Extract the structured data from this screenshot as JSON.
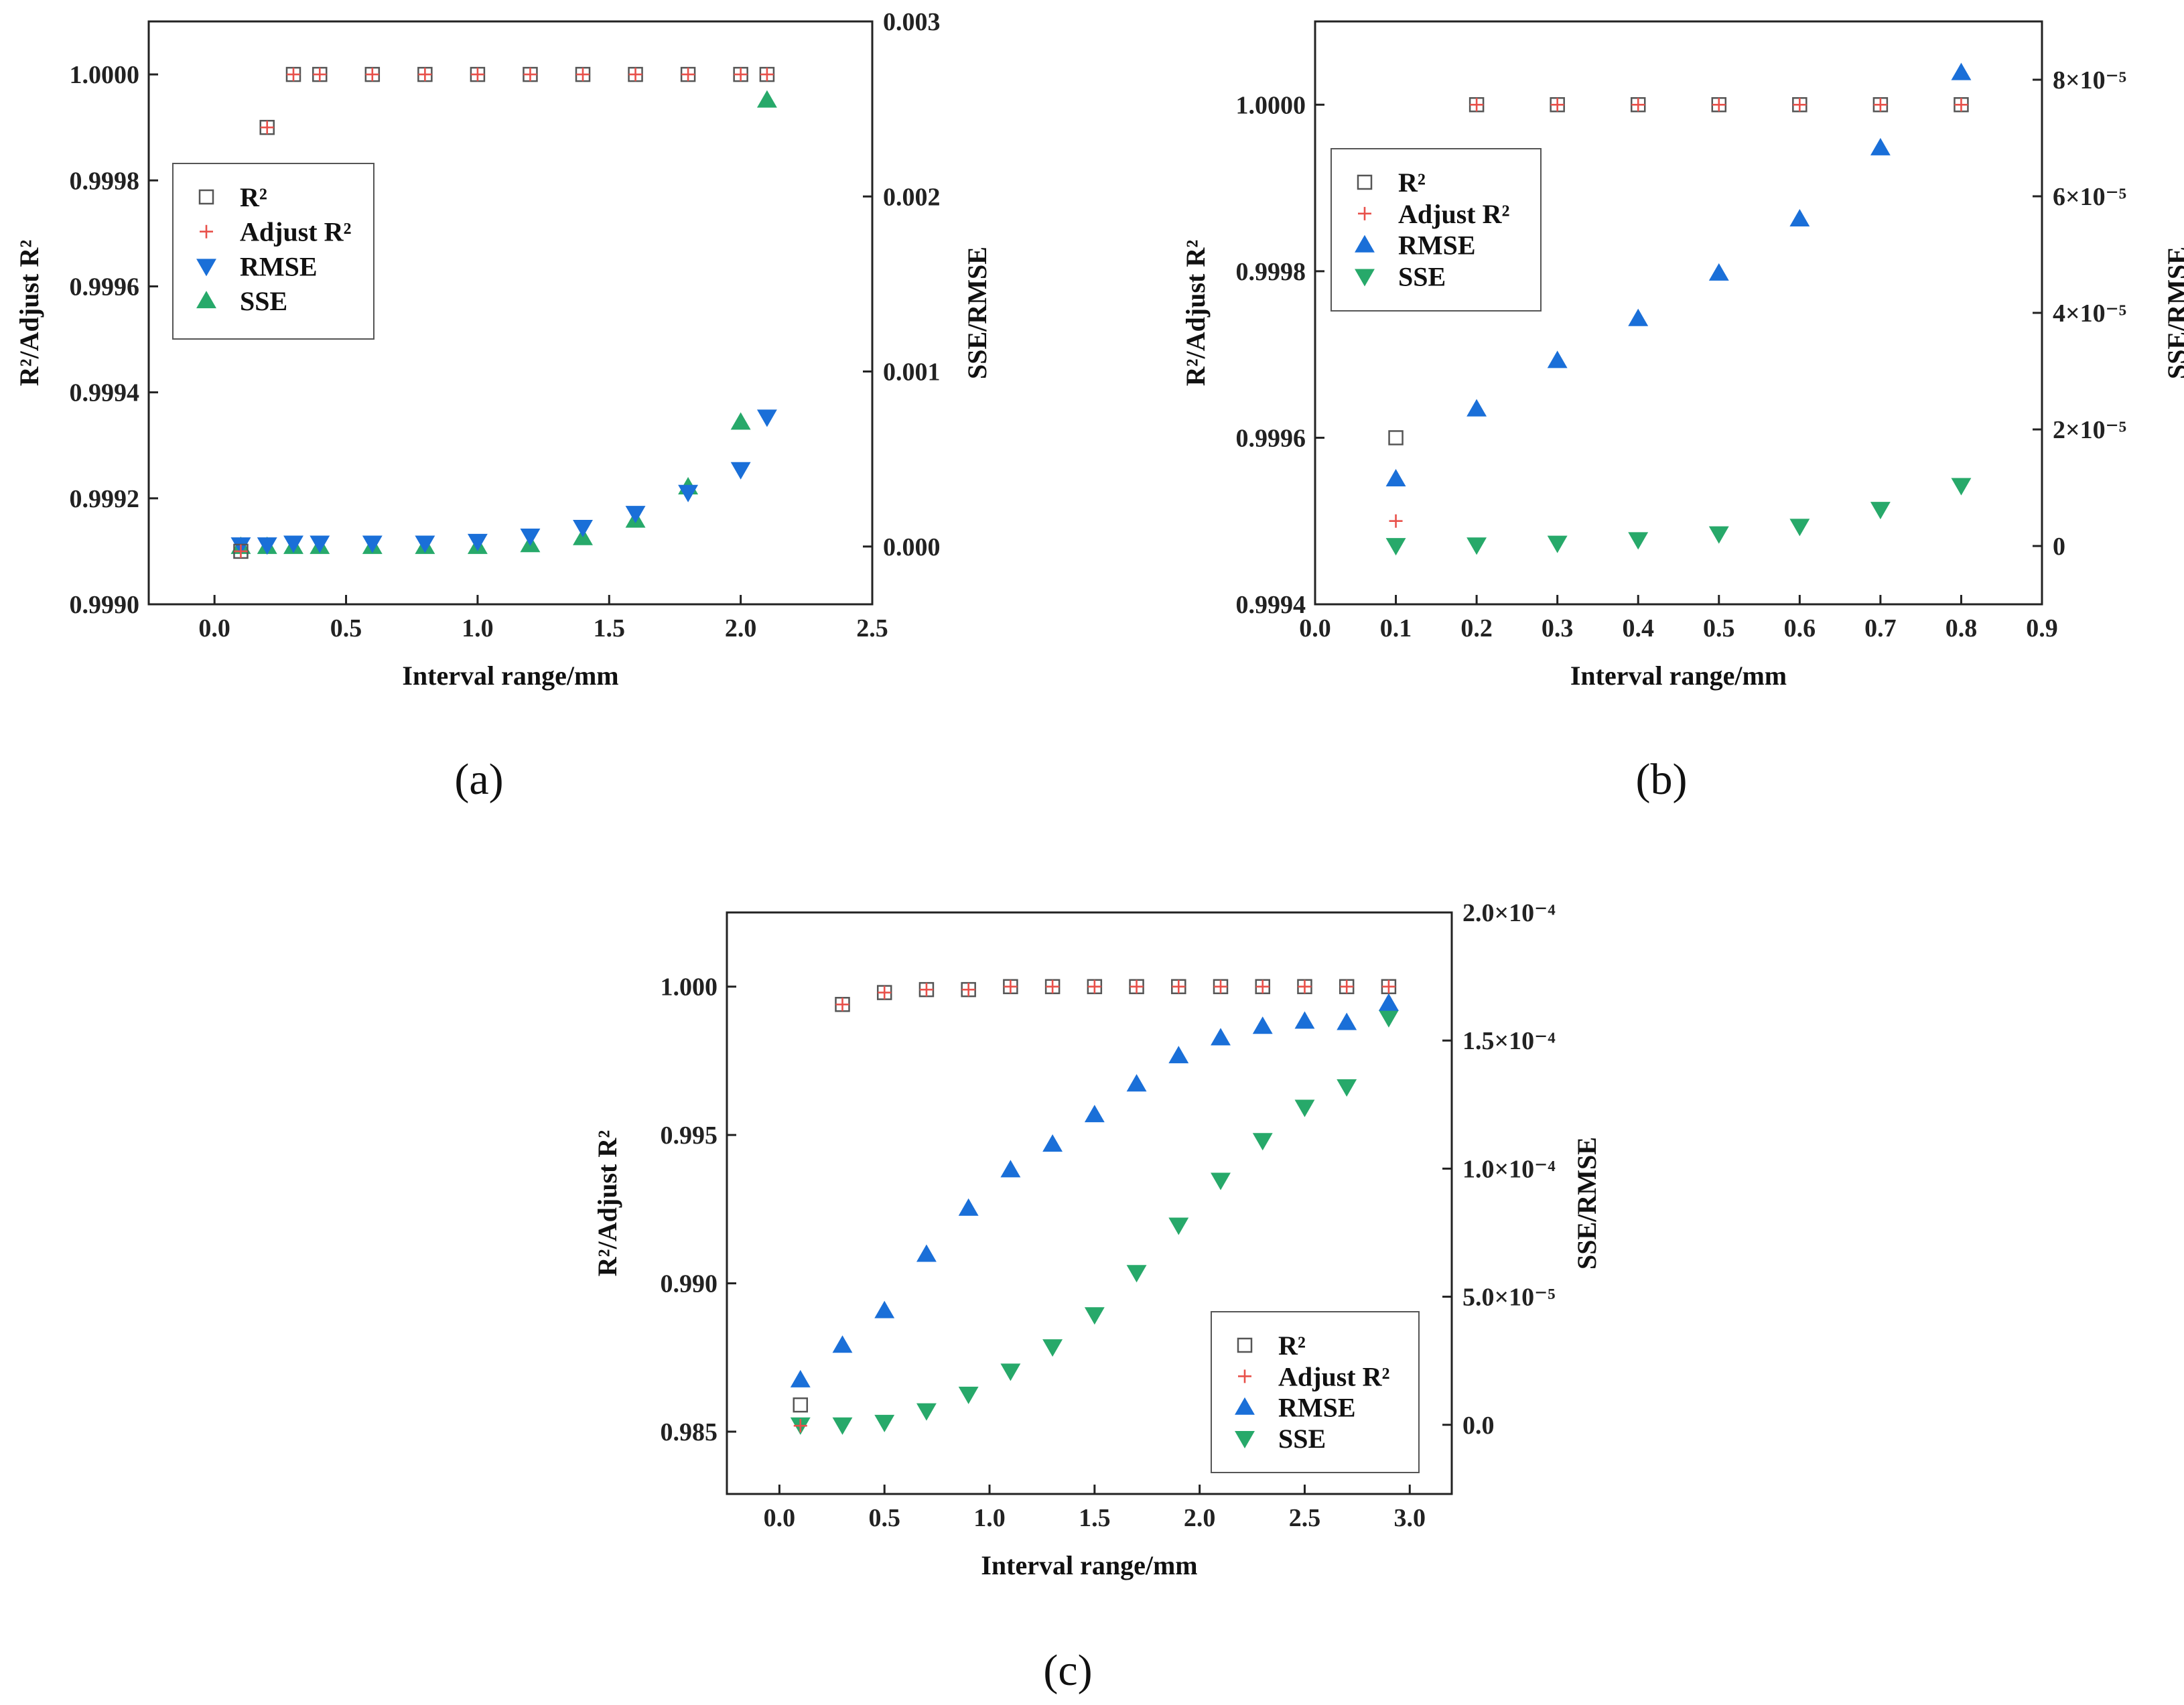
{
  "colors": {
    "r2": "#555555",
    "adj": "#e8504a",
    "rmse": "#1a6fd8",
    "sse": "#27a96a",
    "axis": "#222222"
  },
  "panels": [
    {
      "caption_letter": "a",
      "legend_position": "top-left",
      "legend_order": [
        "r2",
        "adj",
        "rmse",
        "sse"
      ],
      "rmse_marker": "triangle-down",
      "sse_marker": "triangle-up",
      "right_ticks": [
        {
          "v": 0,
          "label": "0.000"
        },
        {
          "v": 0.001,
          "label": "0.001"
        },
        {
          "v": 0.002,
          "label": "0.002"
        },
        {
          "v": 0.003,
          "label": "0.003"
        }
      ]
    },
    {
      "caption_letter": "b",
      "legend_position": "top-left",
      "legend_order": [
        "r2",
        "adj",
        "rmse",
        "sse"
      ],
      "rmse_marker": "triangle-up",
      "sse_marker": "triangle-down",
      "right_ticks": [
        {
          "v": 0,
          "label": "0"
        },
        {
          "v": 2e-05,
          "label": "2×10⁻⁵"
        },
        {
          "v": 4e-05,
          "label": "4×10⁻⁵"
        },
        {
          "v": 6e-05,
          "label": "6×10⁻⁵"
        },
        {
          "v": 8e-05,
          "label": "8×10⁻⁵"
        }
      ]
    },
    {
      "caption_letter": "c",
      "legend_position": "bottom-right",
      "legend_order": [
        "r2",
        "adj",
        "rmse",
        "sse"
      ],
      "rmse_marker": "triangle-up",
      "sse_marker": "triangle-down",
      "right_ticks": [
        {
          "v": 0,
          "label": "0.0"
        },
        {
          "v": 5e-05,
          "label": "5.0×10⁻⁵"
        },
        {
          "v": 0.0001,
          "label": "1.0×10⁻⁴"
        },
        {
          "v": 0.00015,
          "label": "1.5×10⁻⁴"
        },
        {
          "v": 0.0002,
          "label": "2.0×10⁻⁴"
        }
      ]
    }
  ],
  "chart_data": [
    {
      "type": "scatter",
      "xlabel": "Interval range/mm",
      "ylabel": "R²/Adjust R²",
      "y2label": "SSE/RMSE",
      "xlim": [
        -0.25,
        2.5
      ],
      "ylim": [
        0.999,
        1.0001
      ],
      "y2lim": [
        -0.00033,
        0.003
      ],
      "x_ticks": [
        0,
        0.5,
        1,
        1.5,
        2,
        2.5
      ],
      "x_tick_labels": [
        "0.0",
        "0.5",
        "1.0",
        "1.5",
        "2.0",
        "2.5"
      ],
      "y_ticks": [
        0.999,
        0.9992,
        0.9994,
        0.9996,
        0.9998,
        1.0
      ],
      "y_tick_labels": [
        "0.9990",
        "0.9992",
        "0.9994",
        "0.9996",
        "0.9998",
        "1.0000"
      ],
      "y2_tick_labels": [
        "0.000",
        "0.001",
        "0.002",
        "0.003"
      ],
      "x": [
        0.1,
        0.2,
        0.3,
        0.4,
        0.6,
        0.8,
        1.0,
        1.2,
        1.4,
        1.6,
        1.8,
        2.0,
        2.1
      ],
      "series": [
        {
          "key": "r2",
          "name": "R²",
          "axis": "left",
          "values": [
            0.9991,
            0.9999,
            1.0,
            1.0,
            1.0,
            1.0,
            1.0,
            1.0,
            1.0,
            1.0,
            1.0,
            1.0,
            1.0
          ]
        },
        {
          "key": "adj",
          "name": "Adjust R²",
          "axis": "left",
          "values": [
            0.9991,
            0.9999,
            1.0,
            1.0,
            1.0,
            1.0,
            1.0,
            1.0,
            1.0,
            1.0,
            1.0,
            1.0,
            1.0
          ]
        },
        {
          "key": "rmse",
          "name": "RMSE",
          "axis": "right",
          "values": [
            1e-05,
            1e-05,
            2e-05,
            2e-05,
            2e-05,
            2e-05,
            3e-05,
            6e-05,
            0.00011,
            0.00019,
            0.00031,
            0.00044,
            0.00074
          ]
        },
        {
          "key": "sse",
          "name": "SSE",
          "axis": "right",
          "values": [
            0.0,
            0.0,
            0.0,
            0.0,
            0.0,
            0.0,
            0.0,
            1e-05,
            5e-05,
            0.00015,
            0.00034,
            0.00071,
            0.00255
          ]
        }
      ]
    },
    {
      "type": "scatter",
      "xlabel": "Interval range/mm",
      "ylabel": "R²/Adjust R²",
      "y2label": "SSE/RMSE",
      "xlim": [
        0.0,
        0.9
      ],
      "ylim": [
        0.9994,
        1.0001
      ],
      "y2lim": [
        -1e-05,
        9e-05
      ],
      "x_ticks": [
        0,
        0.1,
        0.2,
        0.3,
        0.4,
        0.5,
        0.6,
        0.7,
        0.8,
        0.9
      ],
      "x_tick_labels": [
        "0.0",
        "0.1",
        "0.2",
        "0.3",
        "0.4",
        "0.5",
        "0.6",
        "0.7",
        "0.8",
        "0.9"
      ],
      "y_ticks": [
        0.9994,
        0.9996,
        0.9998,
        1.0
      ],
      "y_tick_labels": [
        "0.9994",
        "0.9996",
        "0.9998",
        "1.0000"
      ],
      "y2_tick_labels": [
        "0",
        "2×10⁻⁵",
        "4×10⁻⁵",
        "6×10⁻⁵",
        "8×10⁻⁵"
      ],
      "x": [
        0.1,
        0.2,
        0.3,
        0.4,
        0.5,
        0.6,
        0.7,
        0.8
      ],
      "series": [
        {
          "key": "r2",
          "name": "R²",
          "axis": "left",
          "values": [
            0.9996,
            1.0,
            1.0,
            1.0,
            1.0,
            1.0,
            1.0,
            1.0
          ]
        },
        {
          "key": "adj",
          "name": "Adjust R²",
          "axis": "left",
          "values": [
            0.9995,
            1.0,
            1.0,
            1.0,
            1.0,
            1.0,
            1.0,
            1.0
          ]
        },
        {
          "key": "rmse",
          "name": "RMSE",
          "axis": "right",
          "values": [
            1.15e-05,
            2.35e-05,
            3.18e-05,
            3.9e-05,
            4.68e-05,
            5.61e-05,
            6.83e-05,
            8.12e-05
          ]
        },
        {
          "key": "sse",
          "name": "SSE",
          "axis": "right",
          "values": [
            1e-07,
            2e-07,
            5e-07,
            1.1e-06,
            2.1e-06,
            3.4e-06,
            6.3e-06,
            1.04e-05
          ]
        }
      ]
    },
    {
      "type": "scatter",
      "xlabel": "Interval range/mm",
      "ylabel": "R²/Adjust R²",
      "y2label": "SSE/RMSE",
      "xlim": [
        -0.25,
        3.2
      ],
      "ylim": [
        0.9829,
        1.0025
      ],
      "y2lim": [
        -2.7e-05,
        0.0002
      ],
      "x_ticks": [
        0,
        0.5,
        1,
        1.5,
        2,
        2.5,
        3
      ],
      "x_tick_labels": [
        "0.0",
        "0.5",
        "1.0",
        "1.5",
        "2.0",
        "2.5",
        "3.0"
      ],
      "y_ticks": [
        0.985,
        0.99,
        0.995,
        1.0
      ],
      "y_tick_labels": [
        "0.985",
        "0.990",
        "0.995",
        "1.000"
      ],
      "y2_tick_labels": [
        "0.0",
        "5.0×10⁻⁵",
        "1.0×10⁻⁴",
        "1.5×10⁻⁴",
        "2.0×10⁻⁴"
      ],
      "x": [
        0.1,
        0.3,
        0.5,
        0.7,
        0.9,
        1.1,
        1.3,
        1.5,
        1.7,
        1.9,
        2.1,
        2.3,
        2.5,
        2.7,
        2.9
      ],
      "series": [
        {
          "key": "r2",
          "name": "R²",
          "axis": "left",
          "values": [
            0.9859,
            0.9994,
            0.9998,
            0.9999,
            0.9999,
            1.0,
            1.0,
            1.0,
            1.0,
            1.0,
            1.0,
            1.0,
            1.0,
            1.0,
            1.0
          ]
        },
        {
          "key": "adj",
          "name": "Adjust R²",
          "axis": "left",
          "values": [
            0.9852,
            0.9994,
            0.9998,
            0.9999,
            0.9999,
            1.0,
            1.0,
            1.0,
            1.0,
            1.0,
            1.0,
            1.0,
            1.0,
            1.0,
            1.0
          ]
        },
        {
          "key": "rmse",
          "name": "RMSE",
          "axis": "right",
          "values": [
            1.75e-05,
            3.1e-05,
            4.45e-05,
            6.65e-05,
            8.45e-05,
            9.95e-05,
            0.0001095,
            0.000121,
            0.000133,
            0.000144,
            0.000151,
            0.0001555,
            0.0001575,
            0.000157,
            0.0001645
          ]
        },
        {
          "key": "sse",
          "name": "SSE",
          "axis": "right",
          "values": [
            0.0,
            0.0,
            1e-06,
            5.5e-06,
            1.2e-05,
            2.1e-05,
            3.05e-05,
            4.3e-05,
            5.95e-05,
            7.8e-05,
            9.55e-05,
            0.000111,
            0.000124,
            0.000132,
            0.000159
          ]
        }
      ]
    }
  ]
}
